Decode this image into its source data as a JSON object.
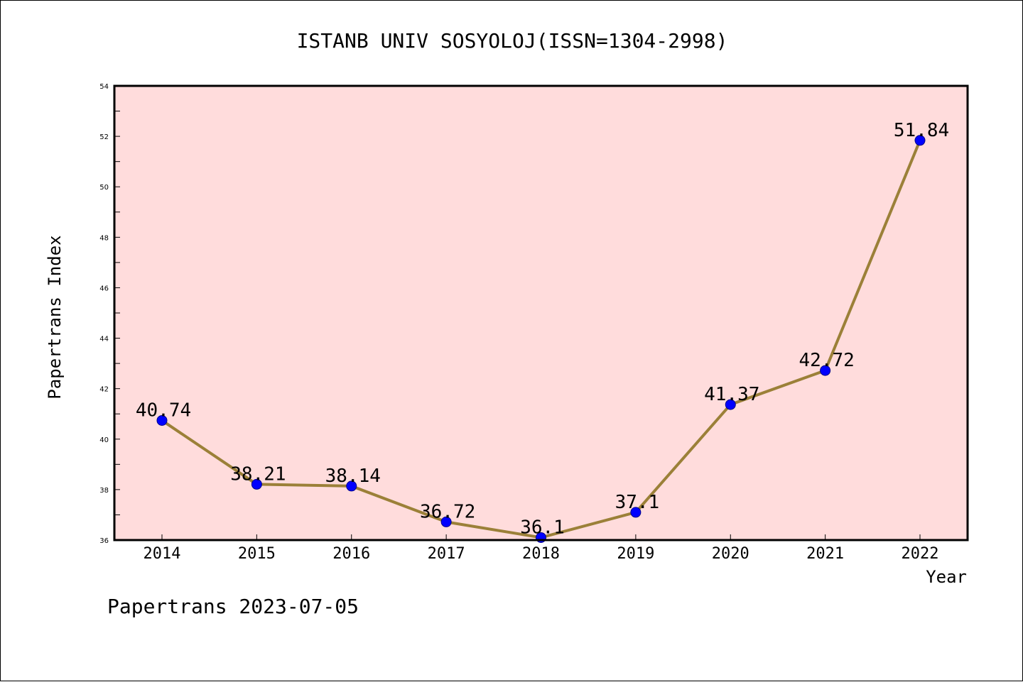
{
  "chart_data": {
    "type": "line",
    "title": "ISTANB UNIV SOSYOLOJ(ISSN=1304-2998)",
    "xlabel": "Year",
    "ylabel": "Papertrans Index",
    "categories": [
      "2014",
      "2015",
      "2016",
      "2017",
      "2018",
      "2019",
      "2020",
      "2021",
      "2022"
    ],
    "series": [
      {
        "values": [
          40.74,
          38.21,
          38.14,
          36.72,
          36.1,
          37.1,
          41.37,
          42.72,
          51.84
        ],
        "data_labels": [
          "40.74",
          "38.21",
          "38.14",
          "36.72",
          "36.1",
          "37.1",
          "41.37",
          "42.72",
          "51.84"
        ]
      }
    ],
    "ylim": [
      36,
      54
    ],
    "yticks": [
      "36",
      "38",
      "40",
      "42",
      "44",
      "46",
      "48",
      "50",
      "52",
      "54"
    ],
    "grid": false,
    "legend": "none",
    "colors": {
      "plot_background": "#ffdcdc",
      "line": "#9b8038",
      "marker": "#0000ff",
      "marker_edge": "#00008b"
    }
  },
  "footer": "Papertrans 2023-07-05"
}
